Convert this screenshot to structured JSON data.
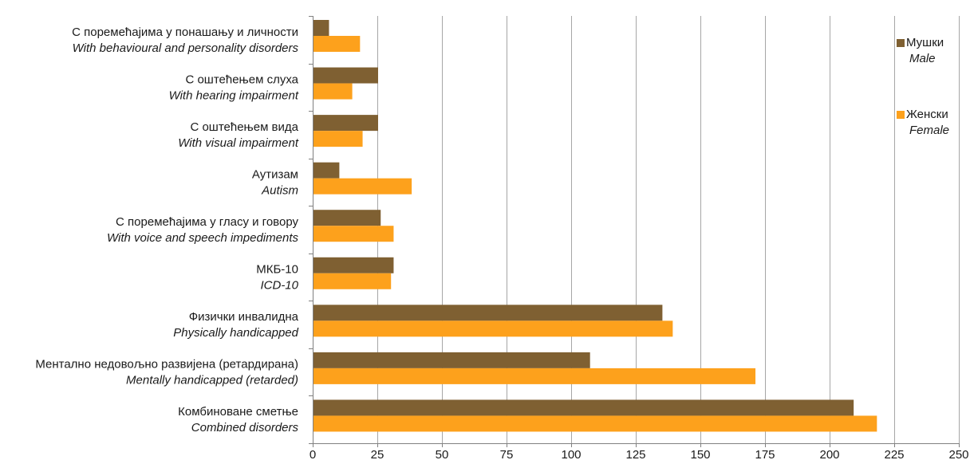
{
  "chart_data": {
    "type": "bar",
    "orientation": "horizontal",
    "categories": [
      {
        "sr": "С поремећајима у понашању и личности",
        "en": "With behavioural and personality disorders"
      },
      {
        "sr": "С оштећењем слуха",
        "en": "With hearing impairment"
      },
      {
        "sr": "С оштећењем вида",
        "en": "With visual impairment"
      },
      {
        "sr": "Аутизам",
        "en": "Autism"
      },
      {
        "sr": "С поремећајима у гласу и говору",
        "en": "With voice and speech impediments"
      },
      {
        "sr": "МКБ-10",
        "en": "ICD-10"
      },
      {
        "sr": "Физички инвалидна",
        "en": "Physically handicapped"
      },
      {
        "sr": "Ментално недовољно развијена (ретардирана)",
        "en": "Mentally handicapped (retarded)"
      },
      {
        "sr": "Комбиноване сметње",
        "en": "Combined disorders"
      }
    ],
    "series": [
      {
        "name": "Мушки",
        "name_en": "Male",
        "color": "#7f6032",
        "values": [
          6,
          25,
          25,
          10,
          26,
          31,
          135,
          107,
          209
        ]
      },
      {
        "name": "Женски",
        "name_en": "Female",
        "color": "#fda11c",
        "values": [
          18,
          15,
          19,
          38,
          31,
          30,
          139,
          171,
          218
        ]
      }
    ],
    "xlim": [
      0,
      250
    ],
    "xticks": [
      0,
      25,
      50,
      75,
      100,
      125,
      150,
      175,
      200,
      225,
      250
    ],
    "grid": "vertical",
    "legend": "right"
  }
}
